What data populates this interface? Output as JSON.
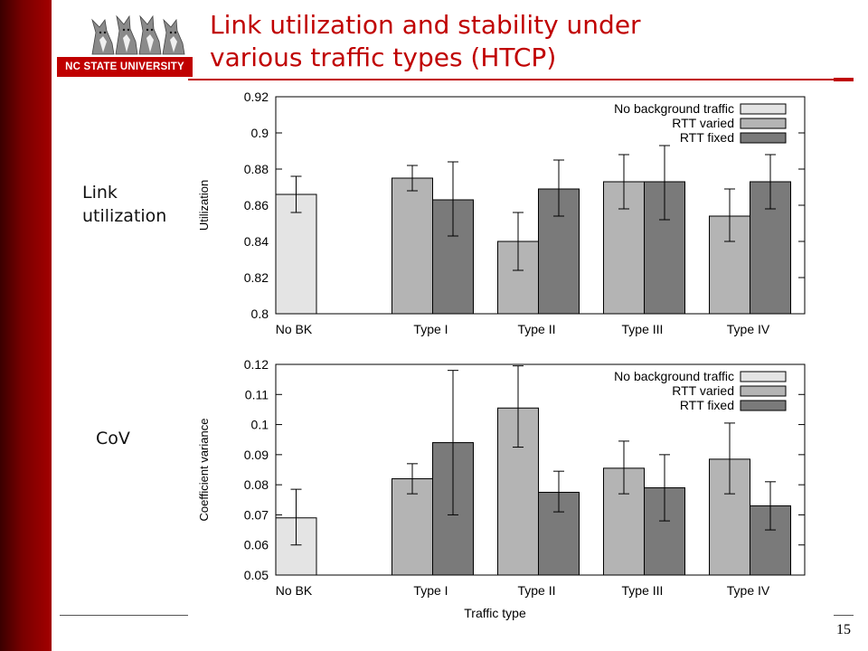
{
  "slide": {
    "title": "Link utilization and stability under\nvarious traffic types (HTCP)",
    "logo_text": "NC STATE UNIVERSITY",
    "label_top": "Link\nutilization",
    "label_bottom": "CoV",
    "page_number": "15"
  },
  "colors": {
    "accent": "#c00000",
    "no_bk": "#e4e4e4",
    "rtt_varied": "#b4b4b4",
    "rtt_fixed": "#7a7a7a"
  },
  "chart_data": [
    {
      "type": "bar",
      "ylabel": "Utilization",
      "xlabel": "",
      "ylim": [
        0.8,
        0.92
      ],
      "yticks": [
        "0.8",
        "0.82",
        "0.84",
        "0.86",
        "0.88",
        "0.9",
        "0.92"
      ],
      "categories": [
        "No BK",
        "Type I",
        "Type II",
        "Type III",
        "Type IV"
      ],
      "legend": "top-right",
      "series": [
        {
          "name": "No background traffic",
          "values": [
            0.866,
            null,
            null,
            null,
            null
          ],
          "err_low": [
            0.856,
            null,
            null,
            null,
            null
          ],
          "err_high": [
            0.876,
            null,
            null,
            null,
            null
          ]
        },
        {
          "name": "RTT varied",
          "values": [
            null,
            0.875,
            0.84,
            0.873,
            0.854
          ],
          "err_low": [
            null,
            0.868,
            0.824,
            0.858,
            0.84
          ],
          "err_high": [
            null,
            0.882,
            0.856,
            0.888,
            0.869
          ]
        },
        {
          "name": "RTT fixed",
          "values": [
            null,
            0.863,
            0.869,
            0.873,
            0.873
          ],
          "err_low": [
            null,
            0.843,
            0.854,
            0.852,
            0.858
          ],
          "err_high": [
            null,
            0.884,
            0.885,
            0.893,
            0.888
          ]
        }
      ]
    },
    {
      "type": "bar",
      "ylabel": "Coefficient variance",
      "xlabel": "Traffic type",
      "ylim": [
        0.05,
        0.12
      ],
      "yticks": [
        "0.05",
        "0.06",
        "0.07",
        "0.08",
        "0.09",
        "0.1",
        "0.11",
        "0.12"
      ],
      "categories": [
        "No BK",
        "Type I",
        "Type II",
        "Type III",
        "Type IV"
      ],
      "legend": "top-right",
      "series": [
        {
          "name": "No background traffic",
          "values": [
            0.069,
            null,
            null,
            null,
            null
          ],
          "err_low": [
            0.06,
            null,
            null,
            null,
            null
          ],
          "err_high": [
            0.0785,
            null,
            null,
            null,
            null
          ]
        },
        {
          "name": "RTT varied",
          "values": [
            null,
            0.082,
            0.1055,
            0.0855,
            0.0885
          ],
          "err_low": [
            null,
            0.077,
            0.0925,
            0.077,
            0.077
          ],
          "err_high": [
            null,
            0.087,
            0.1195,
            0.0945,
            0.1005
          ]
        },
        {
          "name": "RTT fixed",
          "values": [
            null,
            0.094,
            0.0775,
            0.079,
            0.073
          ],
          "err_low": [
            null,
            0.07,
            0.071,
            0.068,
            0.065
          ],
          "err_high": [
            null,
            0.118,
            0.0845,
            0.09,
            0.081
          ]
        }
      ]
    }
  ]
}
